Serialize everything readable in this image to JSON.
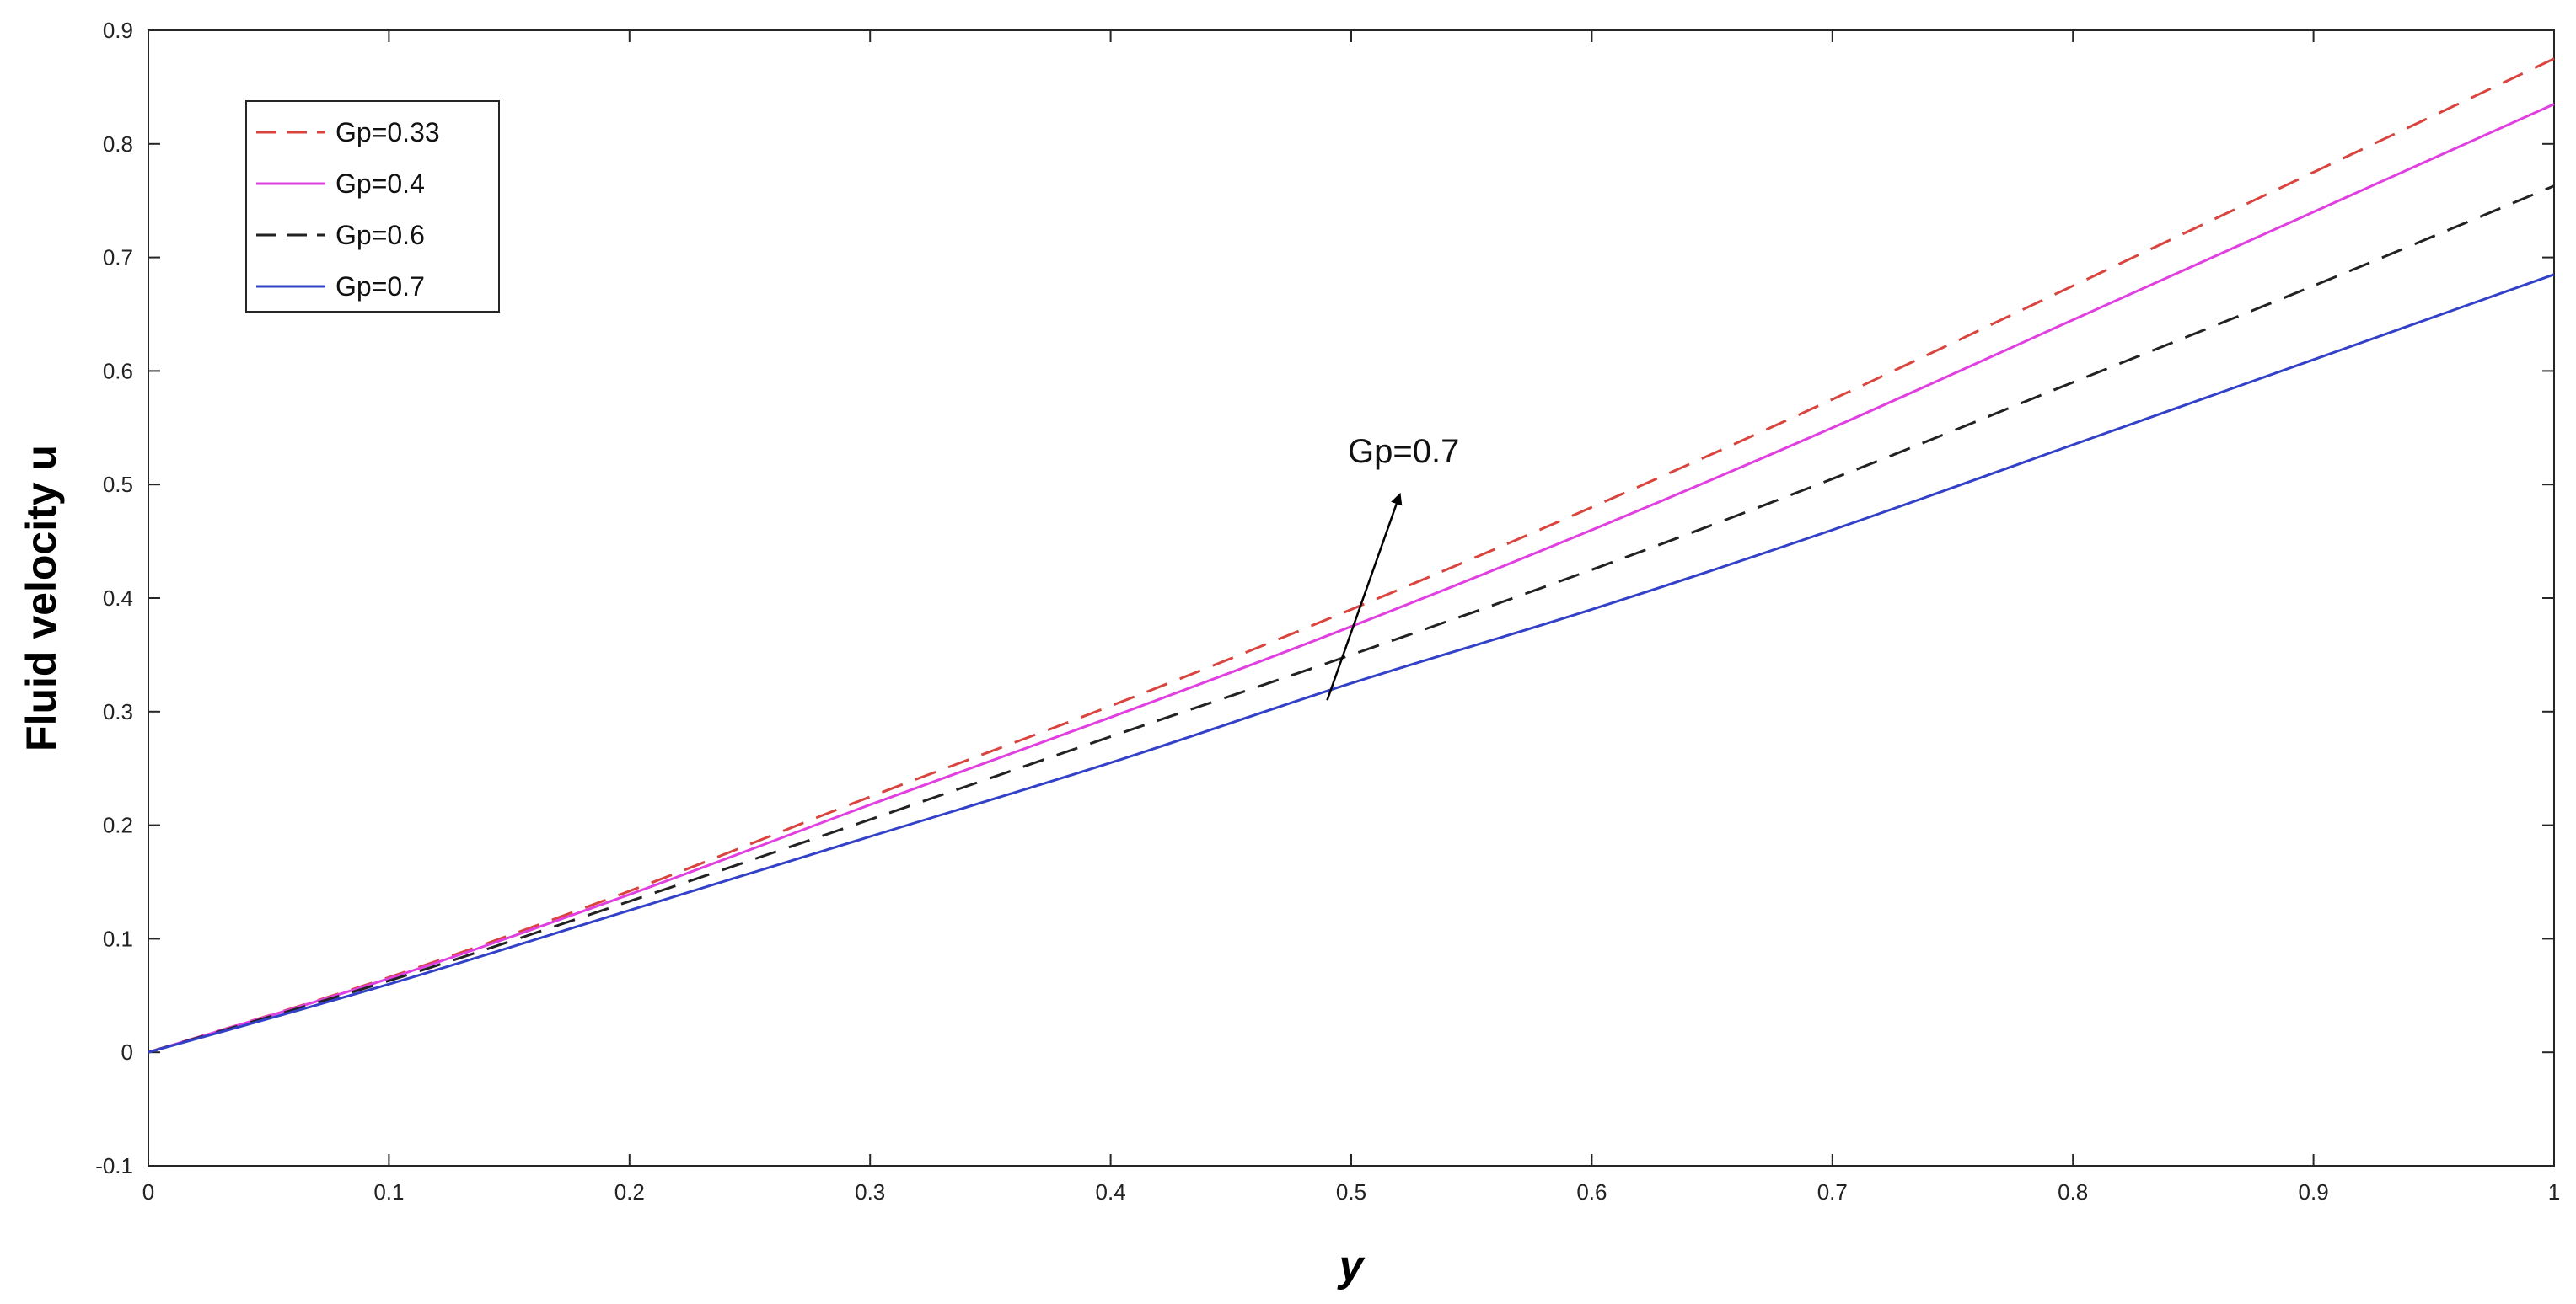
{
  "chart_data": {
    "type": "line",
    "title": "",
    "xlabel": "y",
    "ylabel": "Fluid velocity u",
    "xlim": [
      0,
      1
    ],
    "ylim": [
      -0.1,
      0.9
    ],
    "xticks": [
      "0",
      "0.1",
      "0.2",
      "0.3",
      "0.4",
      "0.5",
      "0.6",
      "0.7",
      "0.8",
      "0.9",
      "1"
    ],
    "yticks": [
      "-0.1",
      "0",
      "0.1",
      "0.2",
      "0.3",
      "0.4",
      "0.5",
      "0.6",
      "0.7",
      "0.8",
      "0.9"
    ],
    "grid": false,
    "legend_position": "top-left",
    "x": [
      0,
      0.1,
      0.2,
      0.3,
      0.4,
      0.5,
      0.6,
      0.7,
      0.8,
      0.9,
      1.0
    ],
    "series": [
      {
        "name": "Gp=0.33",
        "color": "#d9443f",
        "dash": "dashed",
        "values": [
          0,
          0.066,
          0.142,
          0.225,
          0.305,
          0.39,
          0.48,
          0.575,
          0.675,
          0.775,
          0.875
        ]
      },
      {
        "name": "Gp=0.4",
        "color": "#e040e0",
        "dash": "solid",
        "values": [
          0,
          0.065,
          0.139,
          0.218,
          0.295,
          0.375,
          0.46,
          0.55,
          0.645,
          0.74,
          0.835
        ]
      },
      {
        "name": "Gp=0.6",
        "color": "#222222",
        "dash": "dashed",
        "values": [
          0,
          0.063,
          0.133,
          0.205,
          0.278,
          0.35,
          0.425,
          0.505,
          0.59,
          0.675,
          0.763
        ]
      },
      {
        "name": "Gp=0.7",
        "color": "#3340c8",
        "dash": "solid",
        "values": [
          0,
          0.06,
          0.125,
          0.19,
          0.255,
          0.325,
          0.39,
          0.46,
          0.535,
          0.61,
          0.685
        ]
      }
    ],
    "annotation": {
      "text": "Gp=0.7",
      "text_x": 0.5,
      "text_y": 0.53,
      "arrow_from": [
        0.49,
        0.31
      ],
      "arrow_to": [
        0.52,
        0.49
      ]
    }
  }
}
